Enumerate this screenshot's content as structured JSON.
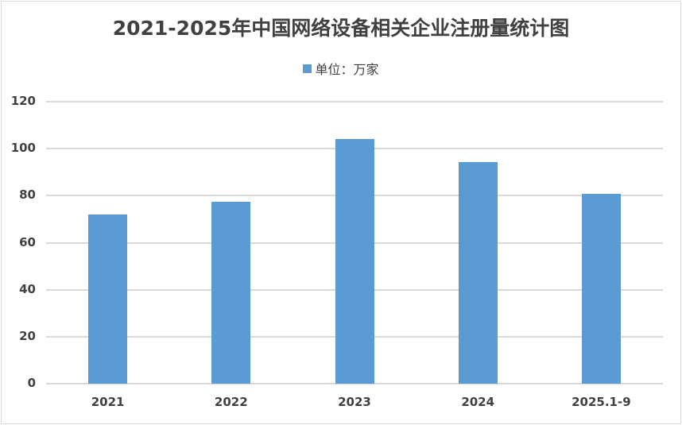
{
  "chart_data": {
    "type": "bar",
    "title": "2021-2025年中国网络设备相关企业注册量统计图",
    "legend": [
      "单位：万家"
    ],
    "legend_position": "top",
    "categories": [
      "2021",
      "2022",
      "2023",
      "2024",
      "2025.1-9"
    ],
    "series": [
      {
        "name": "单位：万家",
        "values": [
          72.0,
          77.4,
          104.1,
          94.3,
          80.8
        ],
        "color": "#5b9bd5"
      }
    ],
    "xlabel": "",
    "ylabel": "",
    "ylim": [
      0,
      120
    ],
    "yticks": [
      "0",
      "20",
      "40",
      "60",
      "80",
      "100",
      "120"
    ],
    "grid": true
  }
}
